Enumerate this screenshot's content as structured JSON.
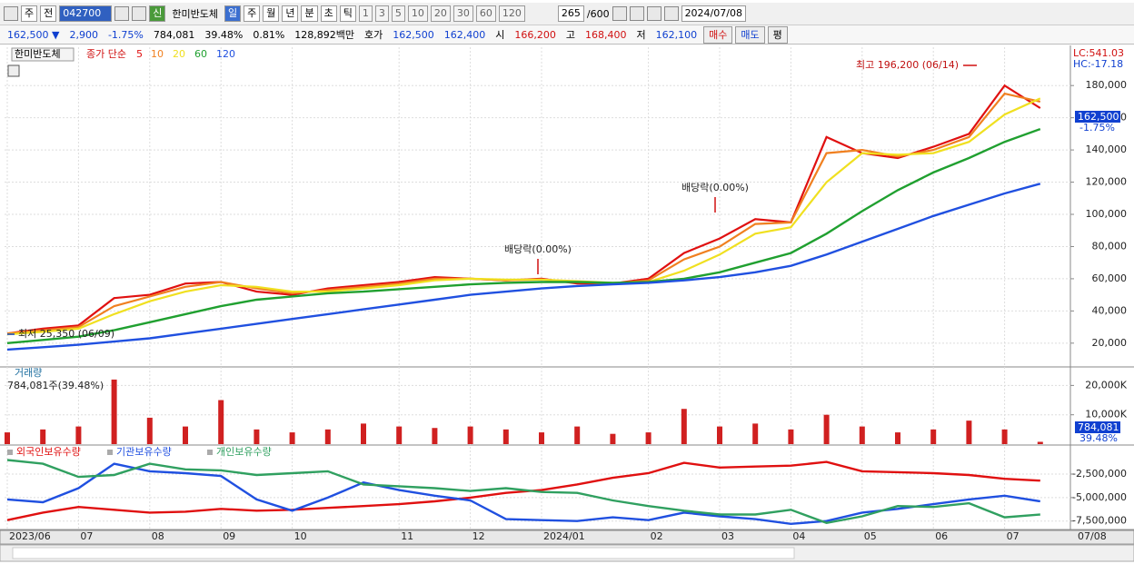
{
  "toolbar": {
    "tabs": [
      "주",
      "전"
    ],
    "code": "042700",
    "badge": "신",
    "name": "한미반도체",
    "periods": [
      "일",
      "주",
      "월",
      "년",
      "분",
      "초",
      "틱"
    ],
    "intervals": [
      "1",
      "3",
      "5",
      "10",
      "20",
      "30",
      "60",
      "120"
    ],
    "count": "265",
    "max": "/600",
    "date": "2024/07/08"
  },
  "info_bar": {
    "price": "162,500 ▼",
    "change": "2,900",
    "change_rate": "-1.75%",
    "volume": "784,081",
    "volume_ratio": "39.48%",
    "turnover": "0.81%",
    "amount": "128,892백만",
    "quote_label": "호가",
    "ask": "162,500",
    "bid": "162,400",
    "open_label": "시",
    "open": "166,200",
    "high_label": "고",
    "high": "168,400",
    "low_label": "저",
    "low": "162,100",
    "buy": "매수",
    "sell": "매도",
    "avg": "평"
  },
  "chart_data": [
    {
      "type": "line",
      "name": "한미반도체",
      "legend_title": "종가 단순",
      "categories": [
        "2023/06",
        null,
        "07",
        null,
        "08",
        null,
        "09",
        null,
        "10",
        null,
        null,
        "11",
        null,
        "12",
        null,
        "2024/01",
        null,
        null,
        "02",
        null,
        "03",
        null,
        "04",
        null,
        "05",
        null,
        "06",
        null,
        "07",
        null
      ],
      "series": [
        {
          "name": "5",
          "color": "#e01010",
          "values": [
            26000,
            29000,
            31000,
            48000,
            50000,
            57000,
            58000,
            52000,
            50000,
            54000,
            56000,
            58000,
            61000,
            60000,
            59000,
            60000,
            57000,
            57000,
            60000,
            76000,
            85000,
            97000,
            95000,
            148000,
            138000,
            135000,
            142000,
            150000,
            180000,
            166000
          ]
        },
        {
          "name": "10",
          "color": "#f08020",
          "values": [
            26000,
            28000,
            30000,
            43000,
            49000,
            55000,
            58000,
            54000,
            51000,
            53000,
            55000,
            57000,
            60000,
            60000,
            59000,
            59500,
            58000,
            57000,
            59000,
            72000,
            80000,
            94000,
            95000,
            138000,
            140000,
            136000,
            140000,
            148000,
            175000,
            170000
          ]
        },
        {
          "name": "20",
          "color": "#f0e020",
          "values": [
            25500,
            27000,
            29000,
            38000,
            46000,
            52000,
            56000,
            55000,
            52000,
            52000,
            54000,
            56000,
            59000,
            60000,
            59500,
            59500,
            58500,
            57500,
            58000,
            65000,
            75000,
            88000,
            92000,
            120000,
            138000,
            137000,
            138000,
            145000,
            162000,
            172000
          ]
        },
        {
          "name": "60",
          "color": "#20a030",
          "values": [
            20000,
            22000,
            24000,
            28000,
            33000,
            38000,
            43000,
            47000,
            49000,
            51000,
            52000,
            53500,
            55000,
            56500,
            57500,
            58000,
            58000,
            57500,
            58000,
            60000,
            64000,
            70000,
            76000,
            88000,
            102000,
            115000,
            126000,
            135000,
            145000,
            153000
          ]
        },
        {
          "name": "120",
          "color": "#2050e0",
          "values": [
            16000,
            17500,
            19000,
            21000,
            23000,
            26000,
            29000,
            32000,
            35000,
            38000,
            41000,
            44000,
            47000,
            50000,
            52000,
            54000,
            55500,
            56500,
            57500,
            59000,
            61000,
            64000,
            68000,
            75000,
            83000,
            91000,
            99000,
            106000,
            113000,
            119000
          ]
        }
      ],
      "ylim": [
        5800,
        203800
      ],
      "yticks": [
        {
          "value": 20000,
          "label": "20,000"
        },
        {
          "value": 40000,
          "label": "40,000"
        },
        {
          "value": 60000,
          "label": "60,000"
        },
        {
          "value": 80000,
          "label": "80,000"
        },
        {
          "value": 100000,
          "label": "100,000"
        },
        {
          "value": 120000,
          "label": "120,000"
        },
        {
          "value": 140000,
          "label": "140,000"
        },
        {
          "value": 160000,
          "label": "160,000"
        },
        {
          "value": 180000,
          "label": "180,000"
        }
      ],
      "grid": true,
      "annotations": [
        "최고 196,200 (06/14)",
        "최저 25,350 (06/09)",
        "배당락(0.00%)",
        "배당락(0.00%)"
      ],
      "lc": "LC:541.03",
      "hc": "HC:-17.18",
      "price_box": {
        "label": "162,500",
        "change": "-1.75%"
      }
    },
    {
      "type": "bar",
      "title": "거래량",
      "subtitle": "784,081주(39.48%)",
      "color": "#d02020",
      "values": [
        4000,
        5000,
        6000,
        22000,
        9000,
        6000,
        15000,
        5000,
        4000,
        5000,
        7000,
        6000,
        5500,
        6000,
        5000,
        4000,
        6000,
        3500,
        4000,
        12000,
        6000,
        7000,
        5000,
        10000,
        6000,
        4000,
        5000,
        8000,
        5000,
        784
      ],
      "ylim": [
        0,
        26000
      ],
      "yticks": [
        {
          "value": 10000,
          "label": "10,000K"
        },
        {
          "value": 20000,
          "label": "20,000K"
        }
      ],
      "grid": true
    },
    {
      "type": "line",
      "series": [
        {
          "name": "외국인보유수량",
          "color": "#e01010",
          "values": [
            -7400000,
            -6600000,
            -6000000,
            -6300000,
            -6600000,
            -6500000,
            -6200000,
            -6400000,
            -6300000,
            -6100000,
            -5900000,
            -5700000,
            -5400000,
            -5000000,
            -4500000,
            -4200000,
            -3600000,
            -2900000,
            -2400000,
            -1300000,
            -1800000,
            -1700000,
            -1600000,
            -1200000,
            -2200000,
            -2300000,
            -2400000,
            -2600000,
            -3000000,
            -3200000
          ]
        },
        {
          "name": "기관보유수량",
          "color": "#2050e0",
          "values": [
            -5200000,
            -5500000,
            -4000000,
            -1400000,
            -2200000,
            -2400000,
            -2700000,
            -5200000,
            -6400000,
            -5000000,
            -3400000,
            -4200000,
            -4800000,
            -5300000,
            -7300000,
            -7400000,
            -7500000,
            -7100000,
            -7400000,
            -6600000,
            -7000000,
            -7300000,
            -7800000,
            -7500000,
            -6600000,
            -6200000,
            -5700000,
            -5200000,
            -4800000,
            -5400000
          ]
        },
        {
          "name": "개인보유수량",
          "color": "#30a060",
          "values": [
            -1000000,
            -1400000,
            -2800000,
            -2600000,
            -1400000,
            -2000000,
            -2100000,
            -2600000,
            -2400000,
            -2200000,
            -3600000,
            -3800000,
            -4000000,
            -4300000,
            -4000000,
            -4400000,
            -4500000,
            -5300000,
            -5900000,
            -6400000,
            -6800000,
            -6800000,
            -6300000,
            -7700000,
            -7000000,
            -5900000,
            -6000000,
            -5600000,
            -7100000,
            -6800000
          ]
        }
      ],
      "ylim": [
        -8400000,
        500000
      ],
      "yticks": [
        {
          "value": -7500000,
          "label": "-7,500,000"
        },
        {
          "value": -5000000,
          "label": "-5,000,000"
        },
        {
          "value": -2500000,
          "label": "-2,500,000"
        }
      ],
      "grid": true
    }
  ],
  "x_end_label": "07/08"
}
